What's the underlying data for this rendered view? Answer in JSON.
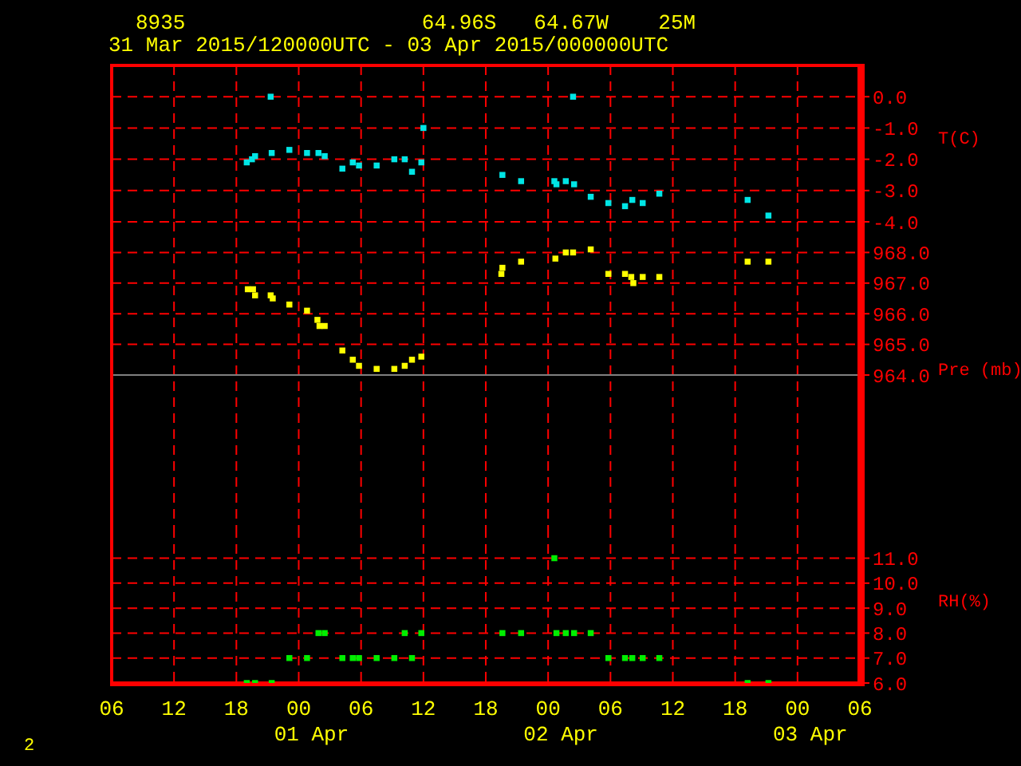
{
  "chart_data": [
    {
      "type": "scatter",
      "title": "8935                   64.96S   64.67W    25M",
      "subtitle": "31 Mar 2015/120000UTC - 03 Apr 2015/000000UTC",
      "ylabel": "T(C)",
      "marker": "square",
      "grid": true,
      "tick_labels": "y",
      "xlim": [
        "2015-03-31T06:00",
        "2015-04-03T06:00"
      ],
      "xticks": [
        {
          "value": "2015-03-31T06:00",
          "label": null
        },
        {
          "value": "2015-03-31T12:00",
          "label": null
        },
        {
          "value": "2015-03-31T18:00",
          "label": null
        },
        {
          "value": "2015-04-01T00:00",
          "label": null
        },
        {
          "value": "2015-04-01T06:00",
          "label": null
        },
        {
          "value": "2015-04-01T12:00",
          "label": null
        },
        {
          "value": "2015-04-01T18:00",
          "label": null
        },
        {
          "value": "2015-04-02T00:00",
          "label": null
        },
        {
          "value": "2015-04-02T06:00",
          "label": null
        },
        {
          "value": "2015-04-02T12:00",
          "label": null
        },
        {
          "value": "2015-04-02T18:00",
          "label": null
        },
        {
          "value": "2015-04-03T00:00",
          "label": null
        },
        {
          "value": "2015-04-03T06:00",
          "label": null
        }
      ],
      "ylim": [
        -4,
        1
      ],
      "yticks": [
        {
          "value": -4,
          "label": "-4.0"
        },
        {
          "value": -3,
          "label": "-3.0"
        },
        {
          "value": -2,
          "label": "-2.0"
        },
        {
          "value": -1,
          "label": "-1.0"
        },
        {
          "value": 0,
          "label": "0.0"
        }
      ],
      "series": [
        {
          "color": "#00e5e5",
          "x": [
            "2015-03-31T19:00",
            "2015-03-31T19:30",
            "2015-03-31T19:48",
            "2015-03-31T21:18",
            "2015-03-31T21:24",
            "2015-03-31T23:06",
            "2015-04-01T00:48",
            "2015-04-01T01:54",
            "2015-04-01T02:30",
            "2015-04-01T04:12",
            "2015-04-01T05:12",
            "2015-04-01T05:48",
            "2015-04-01T07:30",
            "2015-04-01T09:12",
            "2015-04-01T10:12",
            "2015-04-01T10:54",
            "2015-04-01T11:48",
            "2015-04-01T12:00",
            "2015-04-01T19:36",
            "2015-04-01T21:24",
            "2015-04-02T00:36",
            "2015-04-02T00:48",
            "2015-04-02T01:42",
            "2015-04-02T02:24",
            "2015-04-02T02:30",
            "2015-04-02T04:06",
            "2015-04-02T05:48",
            "2015-04-02T07:24",
            "2015-04-02T08:06",
            "2015-04-02T09:06",
            "2015-04-02T10:42",
            "2015-04-02T19:12",
            "2015-04-02T21:12"
          ],
          "values": [
            -2.1,
            -2.0,
            -1.9,
            0.0,
            -1.8,
            -1.7,
            -1.8,
            -1.8,
            -1.9,
            -2.3,
            -2.1,
            -2.2,
            -2.2,
            -2.0,
            -2.0,
            -2.4,
            -2.1,
            -1.0,
            -2.5,
            -2.7,
            -2.7,
            -2.8,
            -2.7,
            0.0,
            -2.8,
            -3.2,
            -3.4,
            -3.5,
            -3.3,
            -3.4,
            -3.1,
            -3.3,
            -3.8
          ]
        }
      ]
    },
    {
      "type": "scatter",
      "ylabel": "Pre (mb)",
      "marker": "square",
      "grid": true,
      "tick_labels": "y",
      "xlim": [
        "2015-03-31T06:00",
        "2015-04-03T06:00"
      ],
      "xticks": [
        {
          "value": "2015-03-31T06:00",
          "label": null
        },
        {
          "value": "2015-03-31T12:00",
          "label": null
        },
        {
          "value": "2015-03-31T18:00",
          "label": null
        },
        {
          "value": "2015-04-01T00:00",
          "label": null
        },
        {
          "value": "2015-04-01T06:00",
          "label": null
        },
        {
          "value": "2015-04-01T12:00",
          "label": null
        },
        {
          "value": "2015-04-01T18:00",
          "label": null
        },
        {
          "value": "2015-04-02T00:00",
          "label": null
        },
        {
          "value": "2015-04-02T06:00",
          "label": null
        },
        {
          "value": "2015-04-02T12:00",
          "label": null
        },
        {
          "value": "2015-04-02T18:00",
          "label": null
        },
        {
          "value": "2015-04-03T00:00",
          "label": null
        },
        {
          "value": "2015-04-03T06:00",
          "label": null
        }
      ],
      "ylim": [
        959,
        969
      ],
      "yticks": [
        {
          "value": 964,
          "label": "964.0"
        },
        {
          "value": 965,
          "label": "965.0"
        },
        {
          "value": 966,
          "label": "966.0"
        },
        {
          "value": 967,
          "label": "967.0"
        },
        {
          "value": 968,
          "label": "968.0"
        }
      ],
      "ref_lines": [
        {
          "axis": "y",
          "value": 964,
          "color": "#808080"
        }
      ],
      "series": [
        {
          "color": "#ffff00",
          "x": [
            "2015-03-31T19:06",
            "2015-03-31T19:36",
            "2015-03-31T19:48",
            "2015-03-31T21:18",
            "2015-03-31T21:30",
            "2015-03-31T23:06",
            "2015-04-01T00:48",
            "2015-04-01T01:48",
            "2015-04-01T02:00",
            "2015-04-01T02:30",
            "2015-04-01T04:12",
            "2015-04-01T05:12",
            "2015-04-01T05:48",
            "2015-04-01T07:30",
            "2015-04-01T09:12",
            "2015-04-01T10:12",
            "2015-04-01T10:54",
            "2015-04-01T11:48",
            "2015-04-01T19:30",
            "2015-04-01T19:36",
            "2015-04-01T21:24",
            "2015-04-02T00:42",
            "2015-04-02T01:42",
            "2015-04-02T02:24",
            "2015-04-02T04:06",
            "2015-04-02T05:48",
            "2015-04-02T07:24",
            "2015-04-02T08:00",
            "2015-04-02T08:12",
            "2015-04-02T09:06",
            "2015-04-02T10:42",
            "2015-04-02T19:12",
            "2015-04-02T21:12"
          ],
          "values": [
            966.8,
            966.8,
            966.6,
            966.6,
            966.5,
            966.3,
            966.1,
            965.8,
            965.6,
            965.6,
            964.8,
            964.5,
            964.3,
            964.2,
            964.2,
            964.3,
            964.5,
            964.6,
            967.3,
            967.5,
            967.7,
            967.8,
            968.0,
            968.0,
            968.1,
            967.3,
            967.3,
            967.2,
            967.0,
            967.2,
            967.2,
            967.7,
            967.7
          ]
        }
      ]
    },
    {
      "type": "scatter",
      "ylabel": "RH(%)",
      "marker": "square",
      "grid": true,
      "annotations": [
        "2"
      ],
      "xlim": [
        "2015-03-31T06:00",
        "2015-04-03T06:00"
      ],
      "xticks": [
        {
          "value": "2015-03-31T06:00",
          "label": "06"
        },
        {
          "value": "2015-03-31T12:00",
          "label": "12"
        },
        {
          "value": "2015-03-31T18:00",
          "label": "18"
        },
        {
          "value": "2015-04-01T00:00",
          "label": "00\n01 Apr"
        },
        {
          "value": "2015-04-01T06:00",
          "label": "06"
        },
        {
          "value": "2015-04-01T12:00",
          "label": "12"
        },
        {
          "value": "2015-04-01T18:00",
          "label": "18"
        },
        {
          "value": "2015-04-02T00:00",
          "label": "00\n02 Apr"
        },
        {
          "value": "2015-04-02T06:00",
          "label": "06"
        },
        {
          "value": "2015-04-02T12:00",
          "label": "12"
        },
        {
          "value": "2015-04-02T18:00",
          "label": "18"
        },
        {
          "value": "2015-04-03T00:00",
          "label": "00\n03 Apr"
        },
        {
          "value": "2015-04-03T06:00",
          "label": "06"
        }
      ],
      "ylim": [
        6,
        12.2
      ],
      "yticks": [
        {
          "value": 6,
          "label": "6.0"
        },
        {
          "value": 7,
          "label": "7.0"
        },
        {
          "value": 8,
          "label": "8.0"
        },
        {
          "value": 9,
          "label": "9.0"
        },
        {
          "value": 10,
          "label": "10.0"
        },
        {
          "value": 11,
          "label": "11.0"
        }
      ],
      "series": [
        {
          "color": "#00ee00",
          "x": [
            "2015-03-31T19:00",
            "2015-03-31T19:48",
            "2015-03-31T21:24",
            "2015-04-02T19:12",
            "2015-04-02T21:12",
            "2015-03-31T23:06",
            "2015-04-01T00:48",
            "2015-04-01T04:12",
            "2015-04-01T05:12",
            "2015-04-01T05:48",
            "2015-04-01T07:30",
            "2015-04-01T09:12",
            "2015-04-01T10:54",
            "2015-04-02T05:48",
            "2015-04-02T07:24",
            "2015-04-02T08:06",
            "2015-04-02T09:06",
            "2015-04-02T10:42",
            "2015-04-01T01:54",
            "2015-04-01T02:30",
            "2015-04-01T10:12",
            "2015-04-01T11:48",
            "2015-04-01T19:36",
            "2015-04-01T21:24",
            "2015-04-02T00:48",
            "2015-04-02T01:42",
            "2015-04-02T02:30",
            "2015-04-02T04:06",
            "2015-04-02T00:36"
          ],
          "values": [
            6,
            6,
            6,
            6,
            6,
            7,
            7,
            7,
            7,
            7,
            7,
            7,
            7,
            7,
            7,
            7,
            7,
            7,
            8,
            8,
            8,
            8,
            8,
            8,
            8,
            8,
            8,
            8,
            11
          ]
        }
      ]
    }
  ]
}
